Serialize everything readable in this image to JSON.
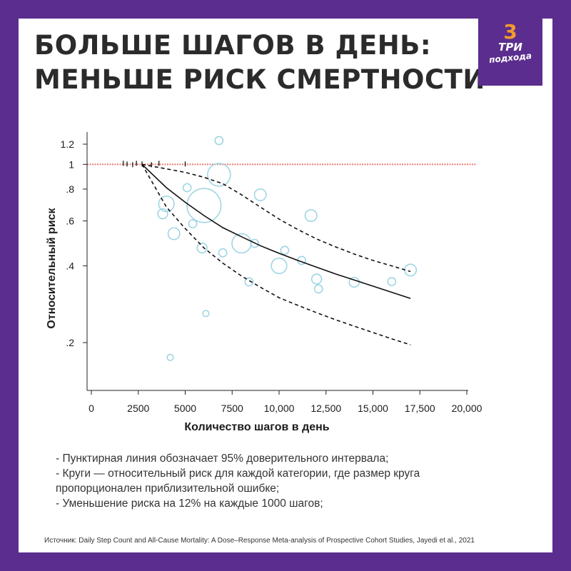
{
  "title": {
    "line1": "БОЛЬШЕ ШАГОВ В ДЕНЬ:",
    "line2": "МЕНЬШЕ РИСК СМЕРТНОСТИ"
  },
  "logo": {
    "num": "3",
    "word1": "ТРИ",
    "word2": "подхода"
  },
  "notes": [
    "- Пунктирная линия обозначает 95% доверительного интервала;",
    "- Круги — относительный риск для каждой категории, где размер круга",
    "пропорционален приблизительной ошибке;",
    "- Уменьшение риска на 12% на каждые 1000 шагов;"
  ],
  "source": "Источник: Daily Step Count and All-Cause Mortality: A Dose–Response Meta-analysis of Prospective Cohort Studies, Jayedi et al., 2021",
  "colors": {
    "background": "#5b2d8e",
    "reference_line": "#e8827a",
    "circles": "#9fd6e4",
    "curve": "#111111"
  },
  "chart_data": {
    "type": "line",
    "xlabel": "Количество шагов в день",
    "ylabel": "Относительный риск",
    "xlim": [
      0,
      20000
    ],
    "ylim": [
      0.15,
      1.3
    ],
    "y_scale": "log",
    "x_ticks": [
      0,
      2500,
      5000,
      7500,
      10000,
      12500,
      15000,
      17500,
      20000
    ],
    "x_tick_labels": [
      "0",
      "2500",
      "5000",
      "7500",
      "10,000",
      "12,500",
      "15,000",
      "17,500",
      "20,000"
    ],
    "y_ticks": [
      0.2,
      0.4,
      0.6,
      0.8,
      1,
      1.2
    ],
    "y_tick_labels": [
      ".2",
      ".4",
      ".6",
      ".8",
      "1",
      "1.2"
    ],
    "reference_line": {
      "y": 1,
      "style": "dotted"
    },
    "series": [
      {
        "role": "estimate",
        "style": "solid",
        "x": [
          2700,
          4000,
          5000,
          6000,
          7000,
          8000,
          9000,
          10000,
          11000,
          12000,
          13000,
          14000,
          15000,
          16000,
          17000
        ],
        "y": [
          1.0,
          0.81,
          0.71,
          0.63,
          0.565,
          0.52,
          0.48,
          0.448,
          0.42,
          0.395,
          0.372,
          0.352,
          0.333,
          0.315,
          0.298
        ]
      },
      {
        "role": "upper_ci",
        "style": "dashed",
        "x": [
          2700,
          4000,
          5000,
          6000,
          7000,
          8000,
          9000,
          10000,
          11000,
          12000,
          13000,
          14000,
          15000,
          16000,
          17000
        ],
        "y": [
          1.0,
          0.96,
          0.93,
          0.89,
          0.84,
          0.76,
          0.68,
          0.61,
          0.555,
          0.51,
          0.475,
          0.445,
          0.42,
          0.4,
          0.38
        ]
      },
      {
        "role": "lower_ci",
        "style": "dashed",
        "x": [
          2700,
          4000,
          5000,
          6000,
          7000,
          8000,
          9000,
          10000,
          11000,
          12000,
          13000,
          14000,
          15000,
          16000,
          17000
        ],
        "y": [
          1.0,
          0.68,
          0.56,
          0.47,
          0.41,
          0.365,
          0.33,
          0.3,
          0.28,
          0.262,
          0.246,
          0.232,
          0.219,
          0.207,
          0.196
        ]
      }
    ],
    "study_points": [
      {
        "x": 6800,
        "y": 1.24,
        "weight": 1
      },
      {
        "x": 6800,
        "y": 0.91,
        "weight": 5
      },
      {
        "x": 6000,
        "y": 0.69,
        "weight": 8
      },
      {
        "x": 4000,
        "y": 0.7,
        "weight": 3
      },
      {
        "x": 3800,
        "y": 0.64,
        "weight": 1.5
      },
      {
        "x": 5100,
        "y": 0.81,
        "weight": 1
      },
      {
        "x": 4400,
        "y": 0.535,
        "weight": 2
      },
      {
        "x": 5400,
        "y": 0.585,
        "weight": 1
      },
      {
        "x": 5900,
        "y": 0.47,
        "weight": 1.5
      },
      {
        "x": 7000,
        "y": 0.45,
        "weight": 1
      },
      {
        "x": 8000,
        "y": 0.49,
        "weight": 4
      },
      {
        "x": 8700,
        "y": 0.49,
        "weight": 1
      },
      {
        "x": 9000,
        "y": 0.76,
        "weight": 2
      },
      {
        "x": 10300,
        "y": 0.46,
        "weight": 1
      },
      {
        "x": 10000,
        "y": 0.4,
        "weight": 3
      },
      {
        "x": 11700,
        "y": 0.63,
        "weight": 2
      },
      {
        "x": 11200,
        "y": 0.42,
        "weight": 1
      },
      {
        "x": 12000,
        "y": 0.355,
        "weight": 1.5
      },
      {
        "x": 12100,
        "y": 0.325,
        "weight": 1
      },
      {
        "x": 8400,
        "y": 0.346,
        "weight": 1
      },
      {
        "x": 14000,
        "y": 0.345,
        "weight": 1.5
      },
      {
        "x": 16000,
        "y": 0.347,
        "weight": 1
      },
      {
        "x": 17000,
        "y": 0.385,
        "weight": 2
      },
      {
        "x": 6100,
        "y": 0.26,
        "weight": 0.5
      },
      {
        "x": 4200,
        "y": 0.175,
        "weight": 0.5
      }
    ],
    "small_markers_x": [
      1700,
      1900,
      2200,
      2400,
      2700,
      3200,
      3600,
      5000
    ],
    "grid": false,
    "legend": "none"
  }
}
